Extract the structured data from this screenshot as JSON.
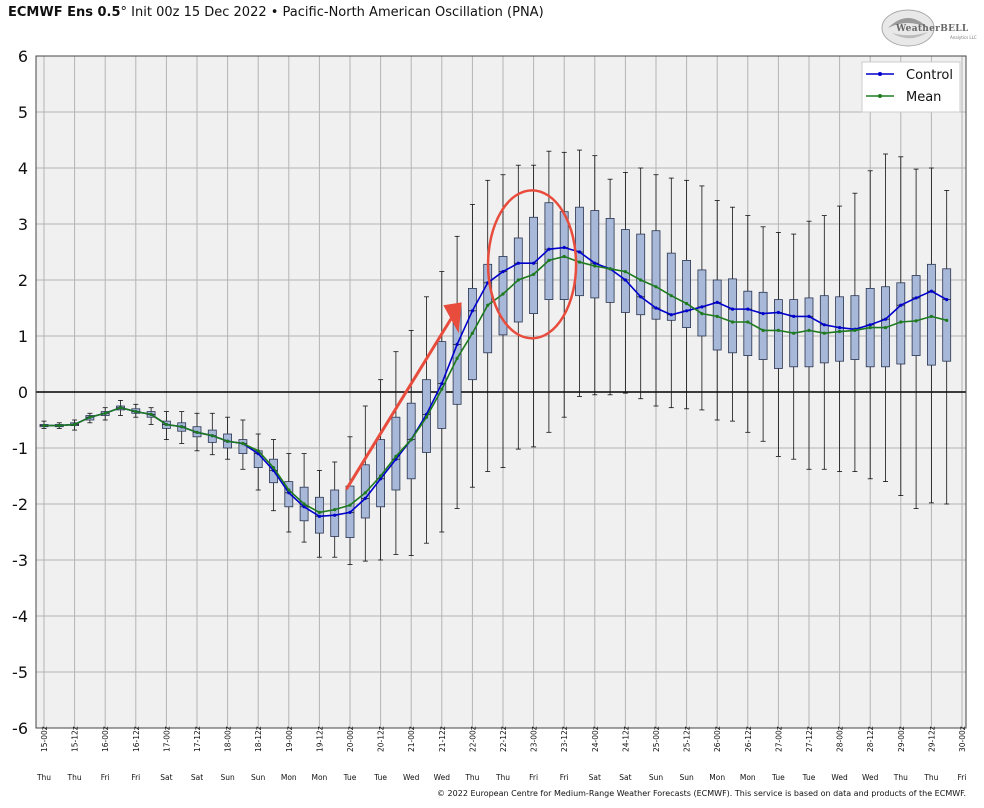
{
  "header": {
    "model": "ECMWF Ens 0.5",
    "degree": "°",
    "subtitle": " Init 00z 15 Dec 2022 • Pacific-North American Oscillation (PNA)"
  },
  "logo": {
    "text": "WeatherBELL",
    "sub": "Analytics LLC"
  },
  "footer": {
    "copyright": "© 2022 European Centre for Medium-Range Weather Forecasts (ECMWF). This service is based on data and products of the ECMWF."
  },
  "colors": {
    "control": "#0000cc",
    "mean": "#1e7a1e",
    "box_fill": "#a8b8d8",
    "box_edge": "#2a3550",
    "plot_bg": "#f0f0f0",
    "grid": "#b4b4b4",
    "annotation": "#e84c3d"
  },
  "chart_data": {
    "type": "box-and-line",
    "title": "Pacific-North American Oscillation (PNA)",
    "ylim": [
      -6,
      6
    ],
    "yticks": [
      "6",
      "5",
      "4",
      "3",
      "2",
      "1",
      "0",
      "-1",
      "-2",
      "-3",
      "-4",
      "-5",
      "-6"
    ],
    "ytick_values": [
      6,
      5,
      4,
      3,
      2,
      1,
      0,
      -1,
      -2,
      -3,
      -4,
      -5,
      -6
    ],
    "x_labels": [
      "15-00z",
      "15-12z",
      "16-00z",
      "16-12z",
      "17-00z",
      "17-12z",
      "18-00z",
      "18-12z",
      "19-00z",
      "19-12z",
      "20-00z",
      "20-12z",
      "21-00z",
      "21-12z",
      "22-00z",
      "22-12z",
      "23-00z",
      "23-12z",
      "24-00z",
      "24-12z",
      "25-00z",
      "25-12z",
      "26-00z",
      "26-12z",
      "27-00z",
      "27-12z",
      "28-00z",
      "28-12z",
      "29-00z",
      "29-12z",
      "30-00z"
    ],
    "day_labels": [
      "Thu",
      "Thu",
      "Fri",
      "Fri",
      "Sat",
      "Sat",
      "Sun",
      "Sun",
      "Mon",
      "Mon",
      "Tue",
      "Tue",
      "Wed",
      "Wed",
      "Thu",
      "Thu",
      "Fri",
      "Fri",
      "Sat",
      "Sat",
      "Sun",
      "Sun",
      "Mon",
      "Mon",
      "Tue",
      "Tue",
      "Wed",
      "Wed",
      "Thu",
      "Thu",
      "Fri"
    ],
    "legend": {
      "position": "top-right",
      "entries": [
        "Control",
        "Mean"
      ]
    },
    "series": [
      {
        "name": "Control",
        "color": "#0000cc",
        "values": [
          -0.6,
          -0.6,
          -0.58,
          -0.45,
          -0.38,
          -0.28,
          -0.35,
          -0.4,
          -0.58,
          -0.62,
          -0.72,
          -0.78,
          -0.88,
          -0.92,
          -1.1,
          -1.4,
          -1.8,
          -2.05,
          -2.22,
          -2.2,
          -2.15,
          -1.9,
          -1.55,
          -1.2,
          -0.85,
          -0.4,
          0.15,
          0.85,
          1.45,
          1.95,
          2.15,
          2.3,
          2.3,
          2.55,
          2.58,
          2.5,
          2.3,
          2.2,
          2.0,
          1.7,
          1.5,
          1.38,
          1.45,
          1.52,
          1.6,
          1.48,
          1.48,
          1.4,
          1.42,
          1.35,
          1.35,
          1.2,
          1.15,
          1.12,
          1.2,
          1.3,
          1.55,
          1.68,
          1.8,
          1.65
        ]
      },
      {
        "name": "Mean",
        "color": "#1e7a1e",
        "values": [
          -0.6,
          -0.6,
          -0.58,
          -0.45,
          -0.38,
          -0.28,
          -0.35,
          -0.4,
          -0.58,
          -0.62,
          -0.72,
          -0.78,
          -0.88,
          -0.92,
          -1.05,
          -1.35,
          -1.75,
          -2.0,
          -2.15,
          -2.1,
          -2.02,
          -1.8,
          -1.5,
          -1.15,
          -0.85,
          -0.45,
          0.05,
          0.6,
          1.05,
          1.55,
          1.75,
          2.0,
          2.1,
          2.35,
          2.42,
          2.32,
          2.25,
          2.2,
          2.15,
          2.0,
          1.88,
          1.72,
          1.58,
          1.4,
          1.35,
          1.25,
          1.25,
          1.1,
          1.1,
          1.05,
          1.1,
          1.05,
          1.08,
          1.1,
          1.15,
          1.15,
          1.25,
          1.27,
          1.35,
          1.28
        ]
      }
    ],
    "boxes": [
      [
        -0.52,
        -0.58,
        -0.6,
        -0.62,
        -0.65
      ],
      [
        -0.55,
        -0.58,
        -0.6,
        -0.62,
        -0.65
      ],
      [
        -0.5,
        -0.55,
        -0.58,
        -0.6,
        -0.68
      ],
      [
        -0.38,
        -0.42,
        -0.45,
        -0.5,
        -0.55
      ],
      [
        -0.28,
        -0.35,
        -0.38,
        -0.42,
        -0.5
      ],
      [
        -0.15,
        -0.25,
        -0.28,
        -0.32,
        -0.42
      ],
      [
        -0.22,
        -0.3,
        -0.35,
        -0.38,
        -0.45
      ],
      [
        -0.28,
        -0.35,
        -0.4,
        -0.45,
        -0.58
      ],
      [
        -0.35,
        -0.52,
        -0.58,
        -0.65,
        -0.85
      ],
      [
        -0.35,
        -0.55,
        -0.62,
        -0.7,
        -0.92
      ],
      [
        -0.38,
        -0.62,
        -0.72,
        -0.8,
        -1.05
      ],
      [
        -0.38,
        -0.68,
        -0.78,
        -0.9,
        -1.12
      ],
      [
        -0.45,
        -0.75,
        -0.88,
        -1.0,
        -1.2
      ],
      [
        -0.5,
        -0.85,
        -0.92,
        -1.1,
        -1.38
      ],
      [
        -0.75,
        -1.05,
        -1.1,
        -1.35,
        -1.75
      ],
      [
        -0.85,
        -1.2,
        -1.4,
        -1.62,
        -2.12
      ],
      [
        -1.1,
        -1.6,
        -1.8,
        -2.05,
        -2.5
      ],
      [
        -1.1,
        -1.7,
        -2.05,
        -2.3,
        -2.68
      ],
      [
        -1.4,
        -1.88,
        -2.22,
        -2.52,
        -2.95
      ],
      [
        -1.25,
        -1.75,
        -2.2,
        -2.58,
        -2.95
      ],
      [
        -0.8,
        -1.68,
        -2.15,
        -2.6,
        -3.08
      ],
      [
        -0.25,
        -1.3,
        -1.9,
        -2.25,
        -3.02
      ],
      [
        0.22,
        -0.85,
        -1.55,
        -2.05,
        -3.0
      ],
      [
        0.72,
        -0.45,
        -1.2,
        -1.75,
        -2.9
      ],
      [
        1.1,
        -0.2,
        -0.85,
        -1.55,
        -2.92
      ],
      [
        1.7,
        0.22,
        -0.4,
        -1.08,
        -2.7
      ],
      [
        2.15,
        0.9,
        0.15,
        -0.65,
        -2.5
      ],
      [
        2.78,
        1.55,
        0.85,
        -0.22,
        -2.08
      ],
      [
        3.35,
        1.85,
        1.45,
        0.22,
        -1.7
      ],
      [
        3.78,
        2.28,
        1.95,
        0.7,
        -1.42
      ],
      [
        3.88,
        2.42,
        2.15,
        1.02,
        -1.35
      ],
      [
        4.05,
        2.75,
        2.3,
        1.25,
        -1.02
      ],
      [
        4.05,
        3.12,
        2.3,
        1.4,
        -0.98
      ],
      [
        4.3,
        3.38,
        2.55,
        1.65,
        -0.72
      ],
      [
        4.28,
        3.22,
        2.58,
        1.65,
        -0.45
      ],
      [
        4.32,
        3.3,
        2.5,
        1.72,
        -0.08
      ],
      [
        4.22,
        3.24,
        2.3,
        1.68,
        -0.05
      ],
      [
        3.8,
        3.1,
        2.2,
        1.6,
        -0.05
      ],
      [
        3.92,
        2.9,
        2.0,
        1.42,
        -0.02
      ],
      [
        4.0,
        2.82,
        1.7,
        1.38,
        -0.12
      ],
      [
        3.88,
        2.88,
        1.5,
        1.3,
        -0.25
      ],
      [
        3.82,
        2.48,
        1.38,
        1.28,
        -0.28
      ],
      [
        3.78,
        2.35,
        1.45,
        1.15,
        -0.3
      ],
      [
        3.68,
        2.18,
        1.52,
        1.0,
        -0.32
      ],
      [
        3.42,
        2.0,
        1.6,
        0.75,
        -0.5
      ],
      [
        3.3,
        2.02,
        1.48,
        0.7,
        -0.52
      ],
      [
        3.15,
        1.8,
        1.48,
        0.65,
        -0.72
      ],
      [
        2.95,
        1.78,
        1.4,
        0.58,
        -0.88
      ],
      [
        2.85,
        1.65,
        1.42,
        0.42,
        -1.15
      ],
      [
        2.82,
        1.65,
        1.35,
        0.45,
        -1.2
      ],
      [
        3.05,
        1.68,
        1.35,
        0.45,
        -1.38
      ],
      [
        3.15,
        1.72,
        1.2,
        0.52,
        -1.38
      ],
      [
        3.32,
        1.7,
        1.15,
        0.55,
        -1.42
      ],
      [
        3.55,
        1.72,
        1.12,
        0.58,
        -1.42
      ],
      [
        3.95,
        1.85,
        1.2,
        0.45,
        -1.55
      ],
      [
        4.25,
        1.88,
        1.3,
        0.45,
        -1.6
      ],
      [
        4.2,
        1.95,
        1.55,
        0.5,
        -1.85
      ],
      [
        3.98,
        2.08,
        1.68,
        0.65,
        -2.08
      ],
      [
        4.0,
        2.28,
        1.8,
        0.48,
        -1.98
      ],
      [
        3.6,
        2.2,
        1.65,
        0.55,
        -2.0
      ]
    ],
    "annotations": [
      "red upward arrow from 20-00z to 22-00z",
      "red circle around 22-12z to 23-12z"
    ]
  }
}
